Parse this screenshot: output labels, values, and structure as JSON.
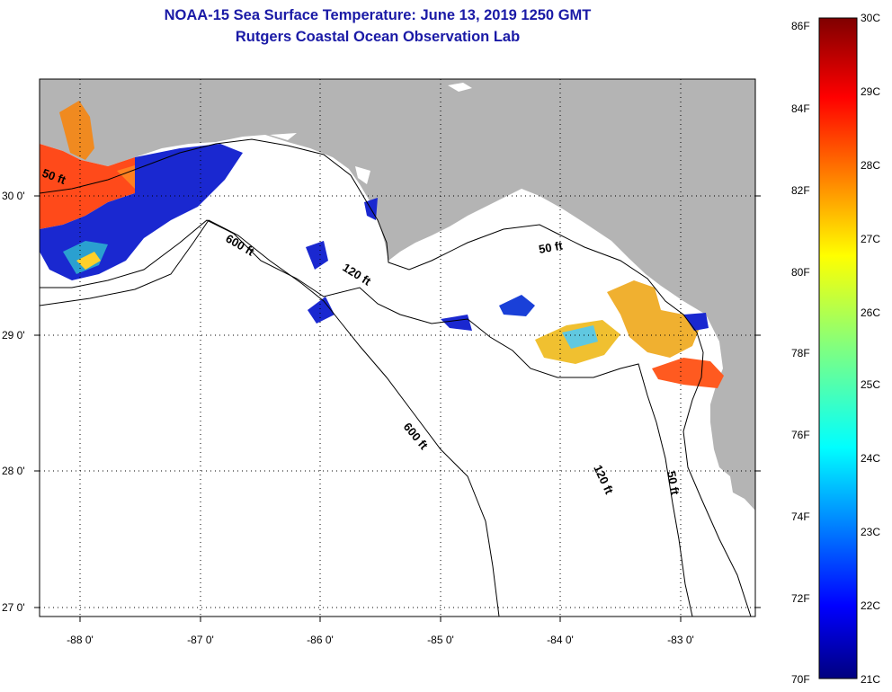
{
  "header": {
    "title": "NOAA-15 Sea Surface Temperature:  June 13, 2019 1250 GMT",
    "subtitle": "Rutgers Coastal Ocean Observation Lab"
  },
  "map": {
    "lat_ticks": [
      "30 0'",
      "29 0'",
      "28 0'",
      "27 0'"
    ],
    "lon_ticks": [
      "-88 0'",
      "-87 0'",
      "-86 0'",
      "-85 0'",
      "-84 0'",
      "-83 0'"
    ],
    "contour_labels": {
      "west_50": "50 ft",
      "west_600": "600 ft",
      "west_120": "120 ft",
      "bend_50": "50 ft",
      "south_600": "600 ft",
      "south_120": "120 ft",
      "south_50": "50 ft"
    },
    "colors": {
      "land": "#b4b4b4",
      "water": "#ffffff",
      "contour": "#000000"
    }
  },
  "colorbar": {
    "f_labels": [
      "86F",
      "84F",
      "82F",
      "80F",
      "78F",
      "76F",
      "74F",
      "72F",
      "70F"
    ],
    "c_labels": [
      "30C",
      "29C",
      "28C",
      "27C",
      "26C",
      "25C",
      "24C",
      "23C",
      "22C",
      "21C"
    ],
    "range_f": [
      70,
      86
    ],
    "range_c": [
      21,
      30
    ],
    "colormap": "jet"
  }
}
